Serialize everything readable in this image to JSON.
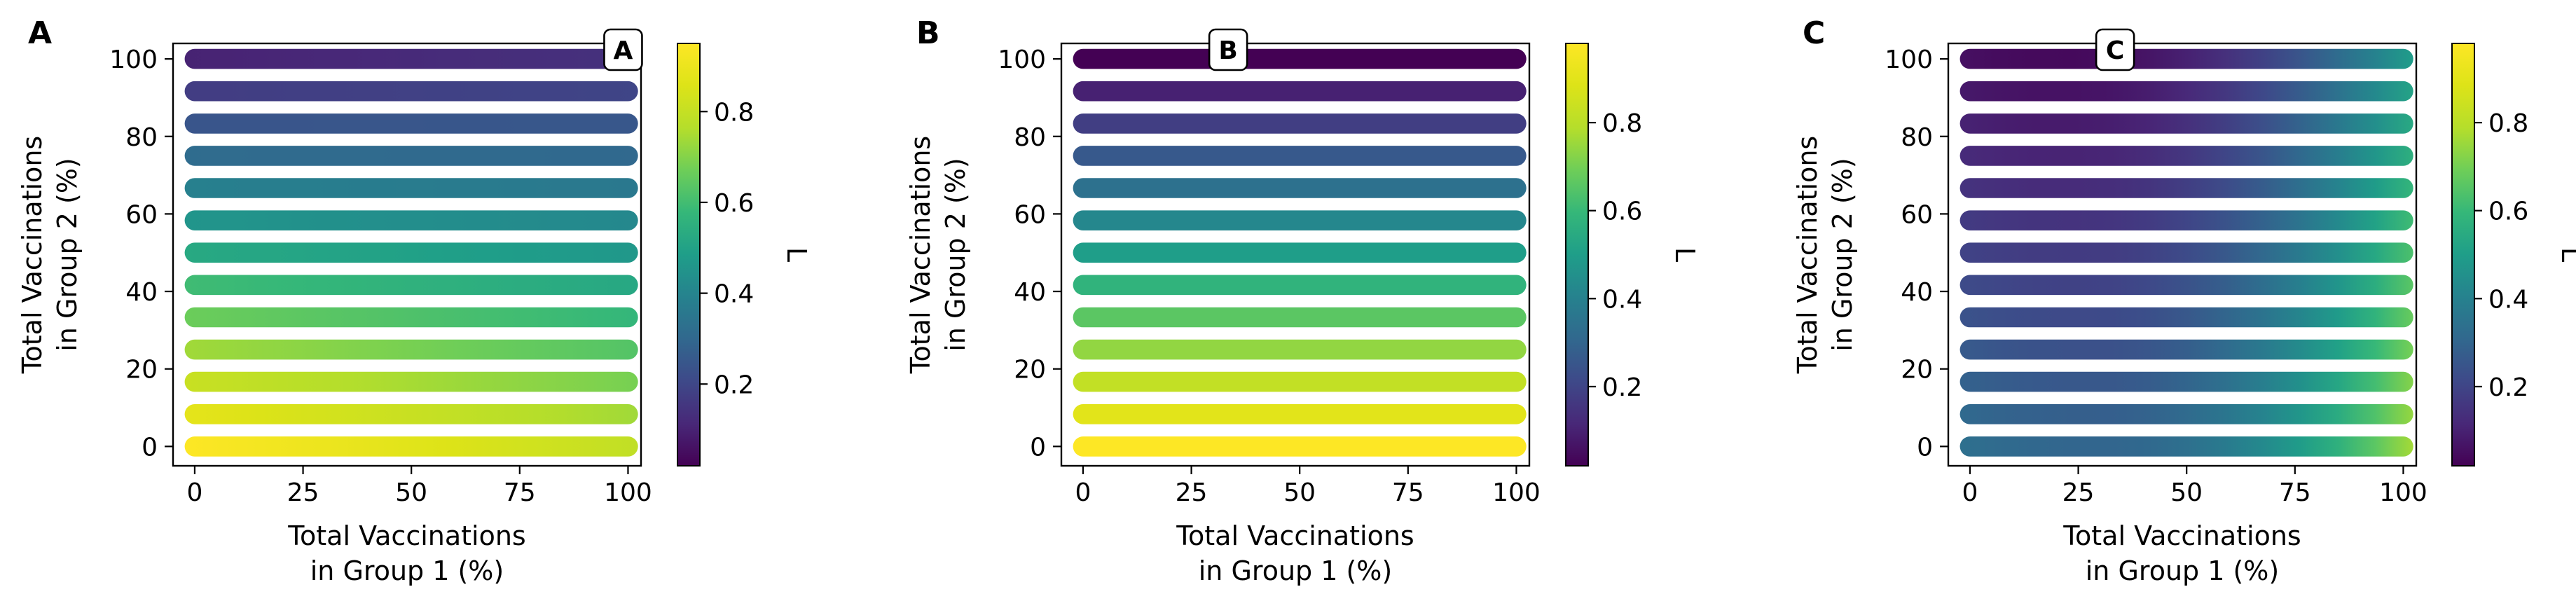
{
  "figure": {
    "panel_letters": [
      "A",
      "B",
      "C"
    ]
  },
  "chart_data": [
    {
      "type": "heatmap",
      "panel": "A",
      "badge": "A",
      "xlabel_line1": "Total Vaccinations",
      "xlabel_line2": "in Group 1 (%)",
      "ylabel_line1": "Total Vaccinations",
      "ylabel_line2": "in Group 2 (%)",
      "xlim": [
        -5,
        103
      ],
      "ylim": [
        -5,
        104
      ],
      "xticks": [
        0,
        25,
        50,
        75,
        100
      ],
      "yticks": [
        0,
        20,
        40,
        60,
        80,
        100
      ],
      "x": [
        0,
        8.33,
        16.67,
        25,
        33.33,
        41.67,
        50,
        58.33,
        66.67,
        75,
        83.33,
        91.67,
        100
      ],
      "y": [
        0,
        8.33,
        16.67,
        25,
        33.33,
        41.67,
        50,
        58.33,
        66.67,
        75,
        83.33,
        91.67,
        100
      ],
      "value_model": "rowfade",
      "colorbar": {
        "label": "L",
        "vmin": 0.02,
        "vmax": 0.95,
        "ticks": [
          0.2,
          0.4,
          0.6,
          0.8
        ]
      },
      "colormap": "viridis"
    },
    {
      "type": "heatmap",
      "panel": "B",
      "badge": "B",
      "xlabel_line1": "Total Vaccinations",
      "xlabel_line2": "in Group 1 (%)",
      "ylabel_line1": "Total Vaccinations",
      "ylabel_line2": "in Group 2 (%)",
      "xlim": [
        -5,
        103
      ],
      "ylim": [
        -5,
        104
      ],
      "xticks": [
        0,
        25,
        50,
        75,
        100
      ],
      "yticks": [
        0,
        20,
        40,
        60,
        80,
        100
      ],
      "x": [
        0,
        8.33,
        16.67,
        25,
        33.33,
        41.67,
        50,
        58.33,
        66.67,
        75,
        83.33,
        91.67,
        100
      ],
      "y": [
        0,
        8.33,
        16.67,
        25,
        33.33,
        41.67,
        50,
        58.33,
        66.67,
        75,
        83.33,
        91.67,
        100
      ],
      "value_model": "rowconst",
      "colorbar": {
        "label": "L",
        "vmin": 0.02,
        "vmax": 0.98,
        "ticks": [
          0.2,
          0.4,
          0.6,
          0.8
        ]
      },
      "colormap": "viridis"
    },
    {
      "type": "heatmap",
      "panel": "C",
      "badge": "C",
      "xlabel_line1": "Total Vaccinations",
      "xlabel_line2": "in Group 1 (%)",
      "ylabel_line1": "Total Vaccinations",
      "ylabel_line2": "in Group 2 (%)",
      "xlim": [
        -5,
        103
      ],
      "ylim": [
        -5,
        104
      ],
      "xticks": [
        0,
        25,
        50,
        75,
        100
      ],
      "yticks": [
        0,
        20,
        40,
        60,
        80,
        100
      ],
      "x": [
        0,
        8.33,
        16.67,
        25,
        33.33,
        41.67,
        50,
        58.33,
        66.67,
        75,
        83.33,
        91.67,
        100
      ],
      "y": [
        0,
        8.33,
        16.67,
        25,
        33.33,
        41.67,
        50,
        58.33,
        66.67,
        75,
        83.33,
        91.67,
        100
      ],
      "value_model": "valley",
      "colorbar": {
        "label": "L",
        "vmin": 0.02,
        "vmax": 0.98,
        "ticks": [
          0.2,
          0.4,
          0.6,
          0.8
        ]
      },
      "colormap": "viridis"
    }
  ]
}
